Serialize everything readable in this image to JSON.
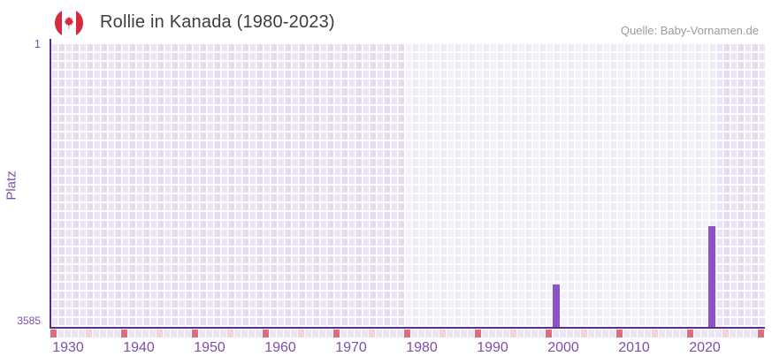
{
  "header": {
    "title": "Rollie in Kanada (1980-2023)",
    "source": "Quelle: Baby-Vornamen.de",
    "flag_icon": "canada-flag-icon"
  },
  "chart_data": {
    "type": "bar",
    "title": "Rollie in Kanada (1980-2023)",
    "ylabel": "Platz",
    "y_axis": {
      "top_label": "1",
      "bottom_label": "3585",
      "min": 1,
      "max": 3585,
      "inverted": true
    },
    "x_axis": {
      "start_year": 1928,
      "end_year": 2028,
      "tick_years": [
        1930,
        1940,
        1950,
        1960,
        1970,
        1980,
        1990,
        2000,
        2010,
        2020
      ]
    },
    "highlight_range": {
      "start_year": 1978,
      "end_year": 2021
    },
    "bars": [
      {
        "year": 1999,
        "rank": 3048
      },
      {
        "year": 2021,
        "rank": 2308
      }
    ],
    "timeline_marks": {
      "red_years": [
        1928,
        1938,
        1948,
        1958,
        1968,
        1978,
        1988,
        1998,
        2008,
        2018,
        2028
      ],
      "pink_years": [
        1933,
        1943,
        1953,
        1963,
        1973,
        1983,
        1993,
        2003,
        2013,
        2023
      ]
    },
    "colors": {
      "bar": "#8b55c9",
      "axis": "#5b2c8d",
      "tick_label": "#7b50ab",
      "timeline_red": "#df6e7c",
      "timeline_pink": "#f5d2dd",
      "timeline_default": "#ece7f5",
      "flag_red": "#d52b3e"
    },
    "legend": null,
    "grid": true
  }
}
